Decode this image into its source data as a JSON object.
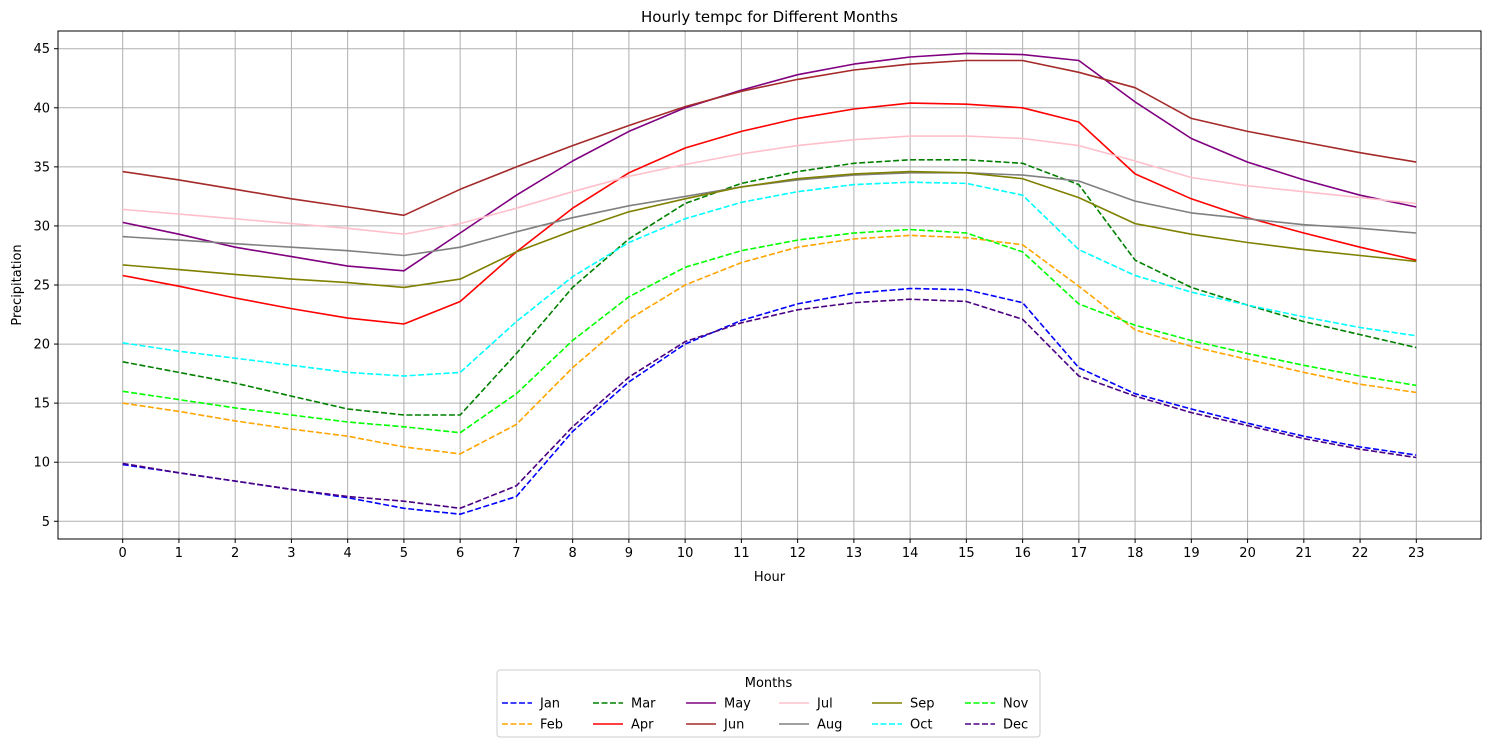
{
  "chart_data": {
    "type": "line",
    "title": "Hourly tempc for Different Months",
    "xlabel": "Hour",
    "ylabel": "Precipitation",
    "x": [
      0,
      1,
      2,
      3,
      4,
      5,
      6,
      7,
      8,
      9,
      10,
      11,
      12,
      13,
      14,
      15,
      16,
      17,
      18,
      19,
      20,
      21,
      22,
      23
    ],
    "xticks": [
      "0",
      "1",
      "2",
      "3",
      "4",
      "5",
      "6",
      "7",
      "8",
      "9",
      "10",
      "11",
      "12",
      "13",
      "14",
      "15",
      "16",
      "17",
      "18",
      "19",
      "20",
      "21",
      "22",
      "23"
    ],
    "ylim": [
      3.5,
      46.5
    ],
    "yticks": [
      5,
      10,
      15,
      20,
      25,
      30,
      35,
      40,
      45
    ],
    "grid": true,
    "legend": {
      "title": "Months",
      "placement": "below-center",
      "columns": 6
    },
    "series": [
      {
        "name": "Jan",
        "color": "#0000ff",
        "dash": "dashed",
        "values": [
          9.8,
          9.1,
          8.4,
          7.7,
          7.0,
          6.1,
          5.6,
          7.1,
          12.6,
          16.8,
          20.0,
          22.0,
          23.4,
          24.3,
          24.7,
          24.6,
          23.5,
          18.0,
          15.8,
          14.5,
          13.3,
          12.2,
          11.3,
          10.6
        ]
      },
      {
        "name": "Feb",
        "color": "#ffa500",
        "dash": "dashed",
        "values": [
          15.0,
          14.3,
          13.5,
          12.8,
          12.2,
          11.3,
          10.7,
          13.2,
          18.0,
          22.1,
          25.0,
          26.9,
          28.2,
          28.9,
          29.2,
          29.0,
          28.4,
          24.9,
          21.2,
          19.8,
          18.7,
          17.6,
          16.6,
          15.9
        ]
      },
      {
        "name": "Mar",
        "color": "#008000",
        "dash": "dashed",
        "values": [
          18.5,
          17.6,
          16.7,
          15.6,
          14.5,
          14.0,
          14.0,
          19.2,
          24.8,
          28.9,
          31.9,
          33.6,
          34.6,
          35.3,
          35.6,
          35.6,
          35.3,
          33.5,
          27.1,
          24.8,
          23.3,
          21.9,
          20.8,
          19.7
        ]
      },
      {
        "name": "Apr",
        "color": "#ff0000",
        "dash": "solid",
        "values": [
          25.8,
          24.9,
          23.9,
          23.0,
          22.2,
          21.7,
          23.6,
          27.8,
          31.5,
          34.5,
          36.6,
          38.0,
          39.1,
          39.9,
          40.4,
          40.3,
          40.0,
          38.8,
          34.4,
          32.3,
          30.7,
          29.4,
          28.2,
          27.1
        ]
      },
      {
        "name": "May",
        "color": "#800080",
        "dash": "solid",
        "values": [
          30.3,
          29.3,
          28.2,
          27.4,
          26.6,
          26.2,
          29.4,
          32.6,
          35.5,
          38.0,
          40.0,
          41.5,
          42.8,
          43.7,
          44.3,
          44.6,
          44.5,
          44.0,
          40.5,
          37.4,
          35.4,
          33.9,
          32.6,
          31.6
        ]
      },
      {
        "name": "Jun",
        "color": "#a52a2a",
        "dash": "solid",
        "values": [
          34.6,
          33.9,
          33.1,
          32.3,
          31.6,
          30.9,
          33.1,
          35.0,
          36.8,
          38.5,
          40.1,
          41.4,
          42.4,
          43.2,
          43.7,
          44.0,
          44.0,
          43.0,
          41.7,
          39.1,
          38.0,
          37.1,
          36.2,
          35.4
        ]
      },
      {
        "name": "Jul",
        "color": "#ffc0cb",
        "dash": "solid",
        "values": [
          31.4,
          31.0,
          30.6,
          30.2,
          29.8,
          29.3,
          30.2,
          31.5,
          32.9,
          34.2,
          35.2,
          36.1,
          36.8,
          37.3,
          37.6,
          37.6,
          37.4,
          36.8,
          35.5,
          34.1,
          33.4,
          32.9,
          32.4,
          31.9
        ]
      },
      {
        "name": "Aug",
        "color": "#808080",
        "dash": "solid",
        "values": [
          29.1,
          28.8,
          28.5,
          28.2,
          27.9,
          27.5,
          28.2,
          29.5,
          30.7,
          31.7,
          32.5,
          33.3,
          33.9,
          34.3,
          34.5,
          34.5,
          34.3,
          33.8,
          32.1,
          31.1,
          30.6,
          30.1,
          29.8,
          29.4
        ]
      },
      {
        "name": "Sep",
        "color": "#808000",
        "dash": "solid",
        "values": [
          26.7,
          26.3,
          25.9,
          25.5,
          25.2,
          24.8,
          25.5,
          27.8,
          29.6,
          31.2,
          32.3,
          33.3,
          34.0,
          34.4,
          34.6,
          34.5,
          34.0,
          32.4,
          30.2,
          29.3,
          28.6,
          28.0,
          27.5,
          27.0
        ]
      },
      {
        "name": "Oct",
        "color": "#00ffff",
        "dash": "dashed",
        "values": [
          20.1,
          19.4,
          18.8,
          18.2,
          17.6,
          17.3,
          17.6,
          21.9,
          25.7,
          28.6,
          30.6,
          32.0,
          32.9,
          33.5,
          33.7,
          33.6,
          32.6,
          28.0,
          25.8,
          24.4,
          23.3,
          22.3,
          21.4,
          20.7
        ]
      },
      {
        "name": "Nov",
        "color": "#00ff00",
        "dash": "dashed",
        "values": [
          16.0,
          15.3,
          14.6,
          14.0,
          13.4,
          13.0,
          12.5,
          15.8,
          20.3,
          24.0,
          26.5,
          27.9,
          28.8,
          29.4,
          29.7,
          29.4,
          27.8,
          23.4,
          21.6,
          20.3,
          19.2,
          18.2,
          17.3,
          16.5
        ]
      },
      {
        "name": "Dec",
        "color": "#4b0082",
        "dash": "dashed",
        "values": [
          9.9,
          9.1,
          8.4,
          7.7,
          7.1,
          6.7,
          6.1,
          8.0,
          13.0,
          17.2,
          20.2,
          21.8,
          22.9,
          23.5,
          23.8,
          23.6,
          22.1,
          17.3,
          15.6,
          14.2,
          13.1,
          12.0,
          11.1,
          10.4
        ]
      }
    ]
  }
}
